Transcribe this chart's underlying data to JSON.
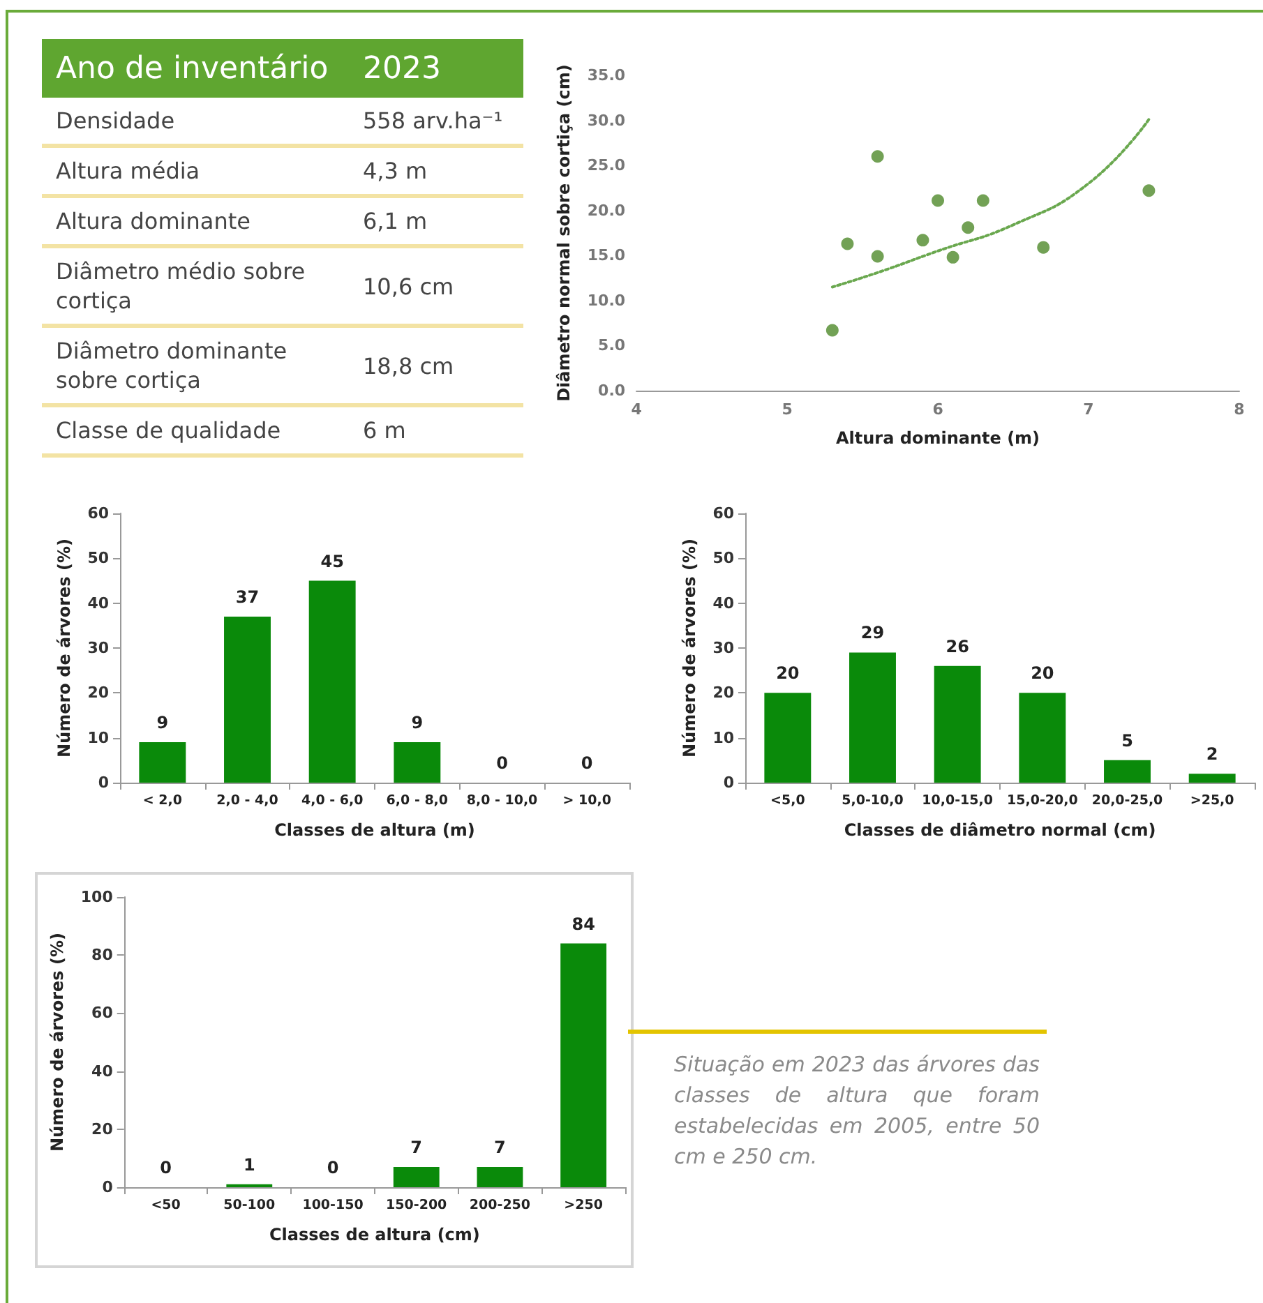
{
  "chart_data": [
    {
      "type": "other",
      "title": "Ano de inventário",
      "subtitle": "2023",
      "categories": [
        "Densidade",
        "Altura média",
        "Altura dominante",
        "Diâmetro médio sobre cortiça",
        "Diâmetro dominante sobre cortiça",
        "Classe de qualidade"
      ],
      "value_labels": [
        "558 arv.ha⁻¹",
        "4,3 m",
        "6,1 m",
        "10,6 cm",
        "18,8 cm",
        "6 m"
      ]
    },
    {
      "type": "scatter",
      "xlabel": "Altura dominante (m)",
      "ylabel": "Diâmetro normal sobre cortiça (cm)",
      "xlim": [
        4,
        8
      ],
      "xticks": [
        4,
        5,
        6,
        7,
        8
      ],
      "ylim": [
        0,
        35
      ],
      "yticks": [
        {
          "value": 0,
          "label": "0.0"
        },
        {
          "value": 5,
          "label": "5.0"
        },
        {
          "value": 10,
          "label": "10.0"
        },
        {
          "value": 15,
          "label": "15.0"
        },
        {
          "value": 20,
          "label": "20.0"
        },
        {
          "value": 25,
          "label": "25.0"
        },
        {
          "value": 30,
          "label": "30.0"
        },
        {
          "value": 35,
          "label": "35.0"
        }
      ],
      "marker": "circle",
      "series": [
        {
          "type": "scatter",
          "color": "#4f8a2b",
          "x": [
            5.3,
            5.4,
            5.6,
            5.6,
            5.9,
            6.0,
            6.1,
            6.2,
            6.3,
            6.7,
            7.4
          ],
          "values": [
            6.7,
            16.3,
            26.0,
            14.9,
            16.7,
            21.1,
            14.8,
            18.1,
            21.1,
            15.9,
            22.2
          ]
        },
        {
          "type": "line",
          "color": "#6aa84f",
          "line_style": "dotted",
          "marker": "none",
          "x": [
            5.3,
            5.6,
            6.0,
            6.5,
            7.0,
            7.4
          ],
          "values": [
            11.5,
            13.1,
            15.5,
            18.4,
            23.0,
            30.1
          ]
        }
      ]
    },
    {
      "type": "bar",
      "xlabel": "Classes de altura (m)",
      "ylabel": "Número de árvores (%)",
      "categories": [
        "< 2,0",
        "2,0 - 4,0",
        "4,0 - 6,0",
        "6,0 - 8,0",
        "8,0 - 10,0",
        "> 10,0"
      ],
      "values": [
        9,
        37,
        45,
        9,
        0,
        0
      ],
      "color": "#0a8a0a",
      "ylim": [
        0,
        60
      ],
      "yticks": [
        0,
        10,
        20,
        30,
        40,
        50,
        60
      ],
      "data_labels": true
    },
    {
      "type": "bar",
      "xlabel": "Classes de diâmetro normal (cm)",
      "ylabel": "Número de árvores (%)",
      "categories": [
        "<5,0",
        "5,0-10,0",
        "10,0-15,0",
        "15,0-20,0",
        "20,0-25,0",
        ">25,0"
      ],
      "values": [
        20,
        29,
        26,
        20,
        5,
        2
      ],
      "color": "#0a8a0a",
      "ylim": [
        0,
        60
      ],
      "yticks": [
        0,
        10,
        20,
        30,
        40,
        50,
        60
      ],
      "data_labels": true
    },
    {
      "type": "bar",
      "xlabel": "Classes de altura (cm)",
      "ylabel": "Número de árvores (%)",
      "categories": [
        "<50",
        "50-100",
        "100-150",
        "150-200",
        "200-250",
        ">250"
      ],
      "values": [
        0,
        1,
        0,
        7,
        7,
        84
      ],
      "color": "#0a8a0a",
      "ylim": [
        0,
        100
      ],
      "yticks": [
        0,
        20,
        40,
        60,
        80,
        100
      ],
      "data_labels": true,
      "annotations": [
        "Situação em 2023 das árvores das classes de altura que foram estabelecidas em 2005, entre 50 cm e 250 cm."
      ]
    }
  ]
}
